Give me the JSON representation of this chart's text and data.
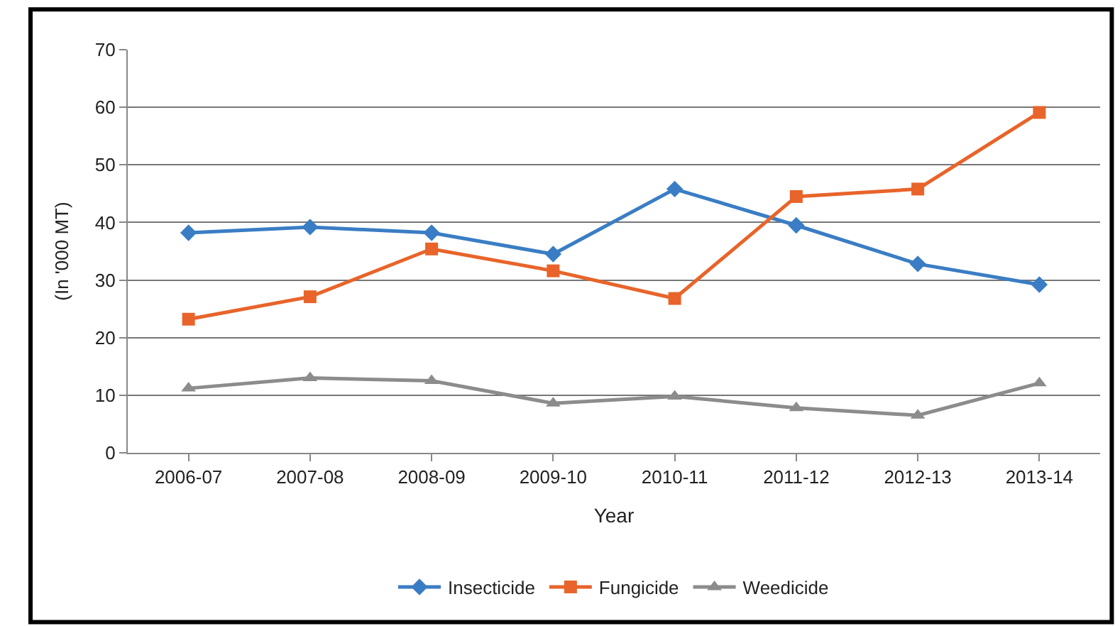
{
  "chart_data": {
    "type": "line",
    "xlabel": "Year",
    "ylabel": "(In '000 MT)",
    "categories": [
      "2006-07",
      "2007-08",
      "2008-09",
      "2009-10",
      "2010-11",
      "2011-12",
      "2012-13",
      "2013-14"
    ],
    "series": [
      {
        "name": "Insecticide",
        "color": "#3a7dc4",
        "marker": "diamond",
        "values": [
          38.2,
          39.2,
          38.2,
          34.5,
          45.8,
          39.5,
          32.8,
          29.2
        ]
      },
      {
        "name": "Fungicide",
        "color": "#e8642a",
        "marker": "square",
        "values": [
          23.2,
          27.1,
          35.4,
          31.6,
          26.8,
          44.5,
          45.8,
          59.1
        ]
      },
      {
        "name": "Weedicide",
        "color": "#8c8c8c",
        "marker": "triangle",
        "values": [
          11.2,
          13,
          12.5,
          8.6,
          9.8,
          7.8,
          6.5,
          12.1
        ]
      }
    ],
    "ylim": [
      0,
      70
    ],
    "yticks": [
      0,
      10,
      20,
      30,
      40,
      50,
      60,
      70
    ],
    "grid": "y",
    "legend": "bottom",
    "line_style": "solid"
  }
}
